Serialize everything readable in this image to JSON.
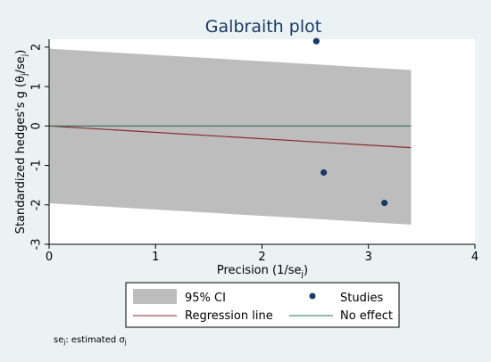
{
  "chart_data": {
    "type": "scatter",
    "title": "Galbraith plot",
    "xlabel_main": "Precision (1/se",
    "xlabel_sub": "j",
    "xlabel_end": ")",
    "ylabel_main": "Standardized hedges's g (θ",
    "ylabel_sub1": "j",
    "ylabel_mid": "/se",
    "ylabel_sub2": "j",
    "ylabel_end": ")",
    "xlim": [
      0,
      4
    ],
    "ylim": [
      -3,
      2.2
    ],
    "x_ticks": [
      0,
      1,
      2,
      3,
      4
    ],
    "y_ticks": [
      -3,
      -2,
      -1,
      0,
      1,
      2
    ],
    "series": [
      {
        "name": "Studies",
        "kind": "points",
        "color": "#1b3a66",
        "points": [
          {
            "x": 2.51,
            "y": 2.15
          },
          {
            "x": 2.58,
            "y": -1.18
          },
          {
            "x": 3.15,
            "y": -1.95
          }
        ]
      },
      {
        "name": "95% CI",
        "kind": "band",
        "color": "#bdbdbd",
        "x": [
          0,
          3.4
        ],
        "upper": [
          1.96,
          1.42
        ],
        "lower": [
          -1.96,
          -2.5
        ]
      },
      {
        "name": "Regression line",
        "kind": "line",
        "color": "#8b2a2a",
        "x": [
          0,
          3.4
        ],
        "y": [
          0,
          -0.55
        ]
      },
      {
        "name": "No effect",
        "kind": "line",
        "color": "#2f6f5a",
        "x": [
          0,
          3.4
        ],
        "y": [
          0,
          0
        ]
      }
    ],
    "legend": {
      "placement": "bottom",
      "entries": [
        "95% CI",
        "Studies",
        "Regression line",
        "No effect"
      ]
    },
    "footnote": {
      "se": "se",
      "se_sub": "j",
      "mid": ": estimated σ",
      "sigma_sub": "j"
    },
    "grid": false
  },
  "colors": {
    "background": "#eaf2f3",
    "title": "#1b3a66",
    "plot_bg": "#ffffff"
  }
}
